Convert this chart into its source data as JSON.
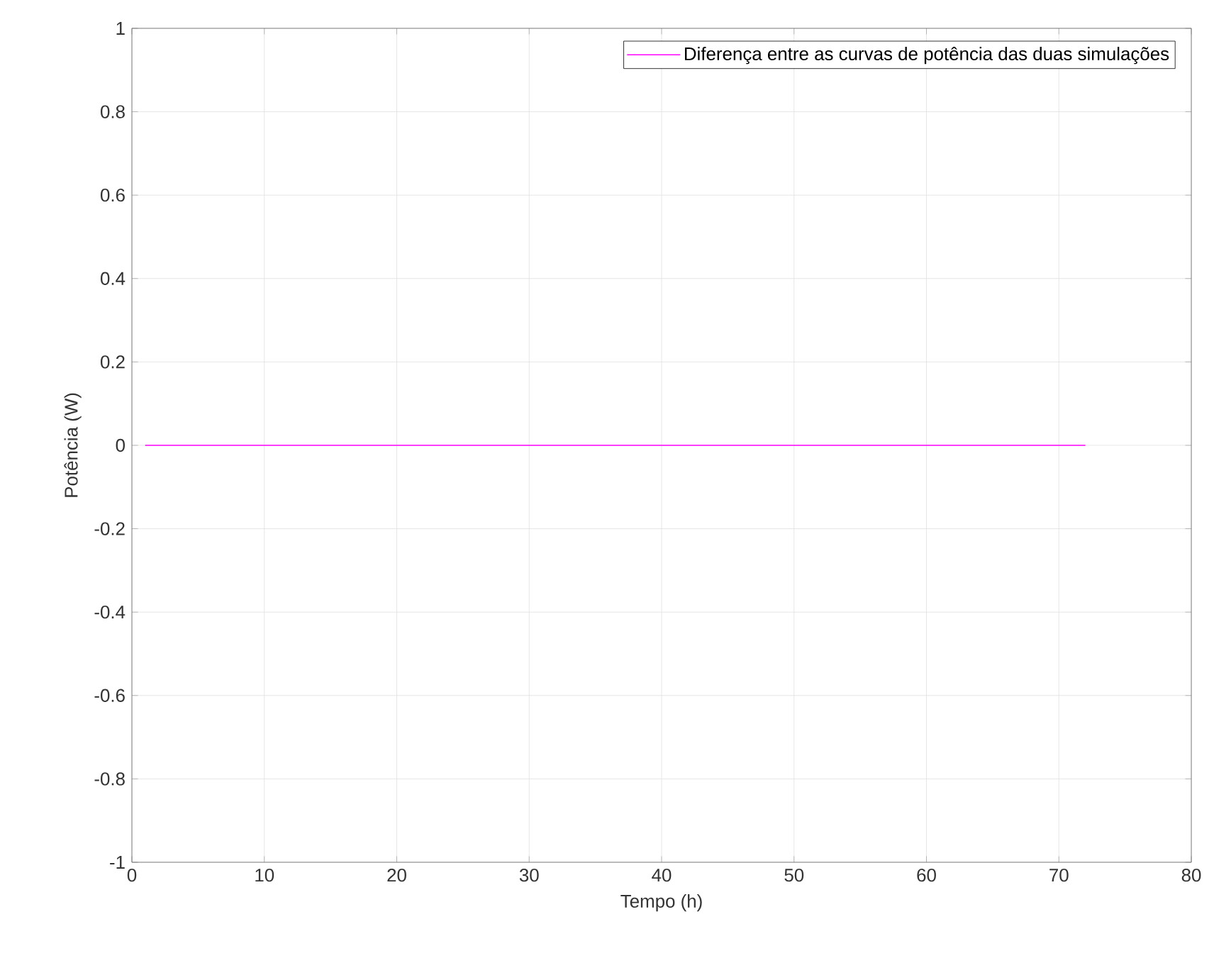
{
  "chart_data": {
    "type": "line",
    "xlabel": "Tempo (h)",
    "ylabel": "Potência (W)",
    "x": [
      1,
      72
    ],
    "series": [
      {
        "name": "Diferença entre as curvas de potência das duas simulações",
        "color": "#ff00ff",
        "values": [
          0,
          0
        ]
      }
    ],
    "xlim": [
      0,
      80
    ],
    "ylim": [
      -1,
      1
    ],
    "xticks": [
      0,
      10,
      20,
      30,
      40,
      50,
      60,
      70,
      80
    ],
    "yticks": [
      -1,
      -0.8,
      -0.6,
      -0.4,
      -0.2,
      0,
      0.2,
      0.4,
      0.6,
      0.8,
      1
    ],
    "grid": true,
    "legend": "top right"
  }
}
